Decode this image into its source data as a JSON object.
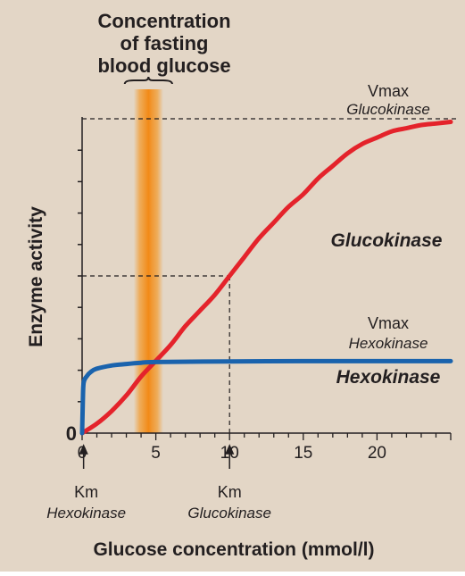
{
  "chart_data": {
    "type": "line",
    "title_lines": [
      "Concentration",
      "of fasting",
      "blood glucose"
    ],
    "xlabel": "Glucose concentration (mmol/l)",
    "ylabel": "Enzyme activity",
    "xlim": [
      0,
      25
    ],
    "ylim": [
      0,
      1
    ],
    "x_ticks": [
      0,
      5,
      10,
      15,
      20
    ],
    "y_tick_label": "0",
    "fasting_band": [
      3.5,
      5.5
    ],
    "background": "#e3d6c6",
    "series": [
      {
        "name": "Glucokinase",
        "color": "#e4232b",
        "vmax": 1.0,
        "km": 10,
        "x": [
          0,
          1,
          2,
          3,
          4,
          5,
          6,
          7,
          8,
          9,
          10,
          11,
          12,
          13,
          14,
          15,
          16,
          17,
          18,
          19,
          20,
          21,
          22,
          23,
          24,
          25
        ],
        "y": [
          0,
          0.03,
          0.07,
          0.12,
          0.18,
          0.23,
          0.28,
          0.34,
          0.39,
          0.44,
          0.5,
          0.56,
          0.62,
          0.67,
          0.72,
          0.76,
          0.81,
          0.85,
          0.89,
          0.92,
          0.94,
          0.96,
          0.97,
          0.98,
          0.985,
          0.99
        ]
      },
      {
        "name": "Hexokinase",
        "color": "#1a63ad",
        "vmax": 0.23,
        "km": 0.1,
        "x": [
          0,
          0.05,
          0.1,
          0.3,
          0.6,
          1,
          2,
          3,
          4,
          5,
          10,
          15,
          20,
          25
        ],
        "y": [
          0,
          0.1,
          0.16,
          0.18,
          0.195,
          0.205,
          0.215,
          0.22,
          0.224,
          0.226,
          0.228,
          0.229,
          0.229,
          0.229
        ]
      }
    ],
    "annotations": {
      "vmax_gk": [
        "Vmax",
        "Glucokinase"
      ],
      "vmax_hk": [
        "Vmax",
        "Hexokinase"
      ],
      "km_hk": [
        "Km",
        "Hexokinase"
      ],
      "km_gk": [
        "Km",
        "Glucokinase"
      ]
    }
  }
}
